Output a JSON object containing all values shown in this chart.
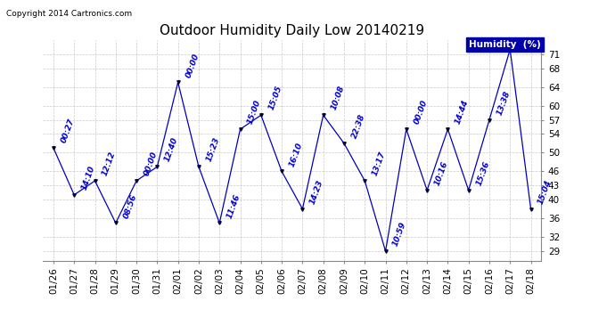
{
  "title": "Outdoor Humidity Daily Low 20140219",
  "copyright_text": "Copyright 2014 Cartronics.com",
  "legend_label": "Humidity  (%)",
  "x_labels": [
    "01/26",
    "01/27",
    "01/28",
    "01/29",
    "01/30",
    "01/31",
    "02/01",
    "02/02",
    "02/03",
    "02/04",
    "02/05",
    "02/06",
    "02/07",
    "02/08",
    "02/09",
    "02/10",
    "02/11",
    "02/12",
    "02/13",
    "02/14",
    "02/15",
    "02/16",
    "02/17",
    "02/18"
  ],
  "y_values": [
    51,
    41,
    44,
    35,
    44,
    47,
    65,
    47,
    35,
    55,
    58,
    46,
    38,
    58,
    52,
    44,
    29,
    55,
    42,
    55,
    42,
    57,
    72,
    38
  ],
  "point_labels": [
    "00:27",
    "14:10",
    "12:12",
    "08:56",
    "00:00",
    "12:40",
    "00:00",
    "15:23",
    "11:46",
    "15:00",
    "15:05",
    "16:10",
    "14:23",
    "10:08",
    "22:38",
    "13:17",
    "10:59",
    "00:00",
    "10:16",
    "14:44",
    "15:36",
    "13:38",
    "",
    "15:04"
  ],
  "line_color": "#0000BB",
  "marker_color": "#000033",
  "bg_color": "#FFFFFF",
  "grid_color": "#BBBBBB",
  "label_color": "#0000CC",
  "legend_bg": "#0000AA",
  "legend_fg": "#FFFFFF",
  "y_ticks": [
    29,
    32,
    36,
    40,
    43,
    46,
    50,
    54,
    57,
    60,
    64,
    68,
    71
  ],
  "ylim": [
    27,
    74
  ],
  "title_fontsize": 11,
  "label_fontsize": 6.5,
  "tick_fontsize": 7.5,
  "copyright_fontsize": 6.5
}
